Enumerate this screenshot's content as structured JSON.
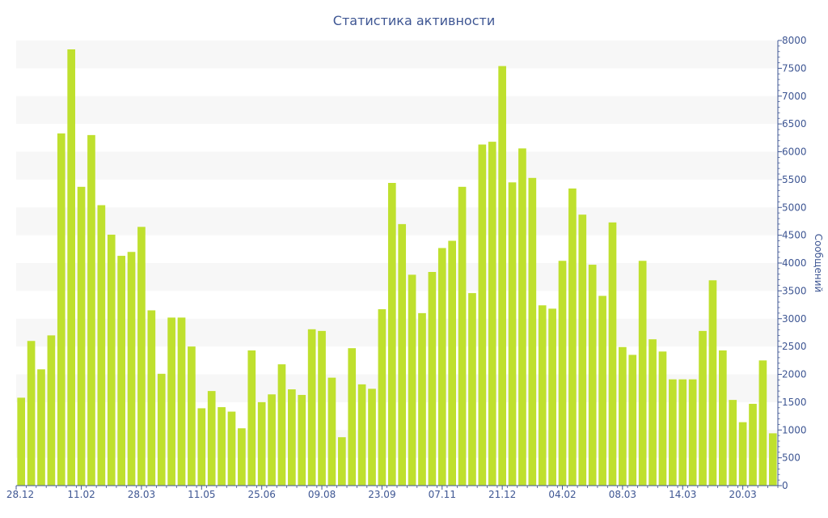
{
  "chart_data": {
    "type": "bar",
    "title": "Статистика активности",
    "ylabel": "Сообщений",
    "xlabel": "",
    "ylim": [
      0,
      8000
    ],
    "y_ticks": [
      0,
      500,
      1000,
      1500,
      2000,
      2500,
      3000,
      3500,
      4000,
      4500,
      5000,
      5500,
      6000,
      6500,
      7000,
      7500,
      8000
    ],
    "y_axis_side": "right",
    "grid": "horizontal alternating bands",
    "legend": "none",
    "bar_color": "#bfe02e",
    "band_color": "#f7f7f7",
    "text_color": "#3e5693",
    "x_tick_labels": [
      {
        "index": 0,
        "label": "28.12"
      },
      {
        "index": 6,
        "label": "11.02"
      },
      {
        "index": 12,
        "label": "28.03"
      },
      {
        "index": 18,
        "label": "11.05"
      },
      {
        "index": 24,
        "label": "25.06"
      },
      {
        "index": 30,
        "label": "09.08"
      },
      {
        "index": 36,
        "label": "23.09"
      },
      {
        "index": 42,
        "label": "07.11"
      },
      {
        "index": 48,
        "label": "21.12"
      },
      {
        "index": 54,
        "label": "04.02"
      },
      {
        "index": 60,
        "label": "08.03"
      },
      {
        "index": 66,
        "label": "14.03"
      },
      {
        "index": 72,
        "label": "20.03"
      }
    ],
    "values": [
      1580,
      2600,
      2090,
      2700,
      6330,
      7840,
      5370,
      6300,
      5040,
      4510,
      4130,
      4200,
      4650,
      3150,
      2010,
      3020,
      3020,
      2500,
      1390,
      1700,
      1410,
      1330,
      1030,
      2430,
      1500,
      1640,
      2180,
      1730,
      1630,
      2810,
      2780,
      1940,
      870,
      2470,
      1820,
      1740,
      3170,
      5440,
      4700,
      3790,
      3100,
      3840,
      4270,
      4400,
      5370,
      3460,
      6130,
      6180,
      7540,
      5450,
      6060,
      5530,
      3240,
      3180,
      4040,
      5340,
      4870,
      3970,
      3410,
      4730,
      2490,
      2350,
      4040,
      2630,
      2410,
      1910,
      1910,
      1910,
      2780,
      3690,
      2430,
      1540,
      1140,
      1470,
      2250,
      940
    ]
  }
}
